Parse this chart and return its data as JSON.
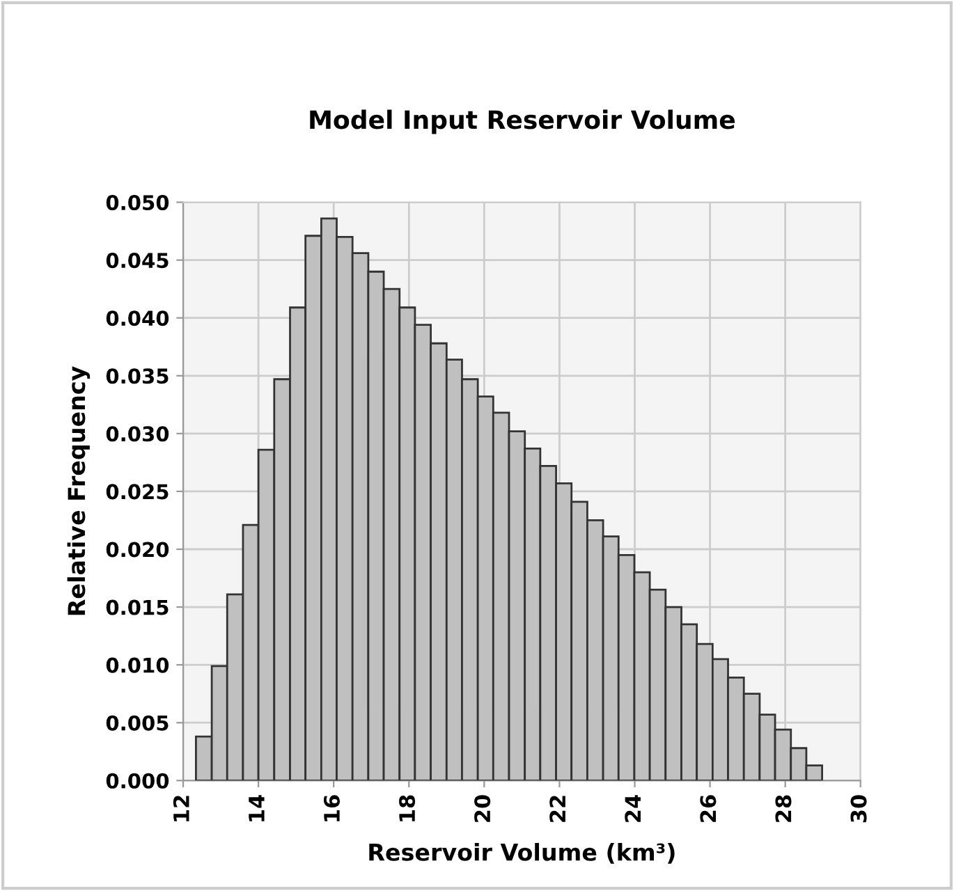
{
  "chart_data": {
    "type": "histogram",
    "title": "Model Input Reservoir Volume",
    "xlabel": "Reservoir Volume (km³)",
    "ylabel": "Relative Frequency",
    "bins": [
      12.34,
      12.76,
      13.17,
      13.59,
      14.0,
      14.42,
      14.84,
      15.25,
      15.67,
      16.08,
      16.5,
      16.92,
      17.33,
      17.75,
      18.16,
      18.58,
      19.0,
      19.41,
      19.83,
      20.24,
      20.66,
      21.08,
      21.49,
      21.91,
      22.32,
      22.74,
      23.16,
      23.57,
      23.99,
      24.4,
      24.82,
      25.24,
      25.65,
      26.07,
      26.48,
      26.9,
      27.32,
      27.73,
      28.15,
      28.56,
      28.98
    ],
    "values": [
      0.0038,
      0.0099,
      0.0161,
      0.0221,
      0.0286,
      0.0347,
      0.0409,
      0.0471,
      0.0486,
      0.047,
      0.0456,
      0.044,
      0.0425,
      0.0409,
      0.0394,
      0.0378,
      0.0364,
      0.0347,
      0.0332,
      0.0318,
      0.0302,
      0.0287,
      0.0272,
      0.0257,
      0.0241,
      0.0225,
      0.0211,
      0.0195,
      0.018,
      0.0165,
      0.015,
      0.0135,
      0.0118,
      0.0105,
      0.0089,
      0.0075,
      0.0057,
      0.0044,
      0.0028,
      0.0013
    ],
    "color": "#c0c0c0",
    "xlim": [
      12,
      30
    ],
    "xticks": [
      12,
      14,
      16,
      18,
      20,
      22,
      24,
      26,
      28,
      30
    ],
    "ylim": [
      0,
      0.05
    ],
    "yticks": [
      {
        "value": 0,
        "label": "0.000"
      },
      {
        "value": 0.005,
        "label": "0.005"
      },
      {
        "value": 0.01,
        "label": "0.010"
      },
      {
        "value": 0.015,
        "label": "0.015"
      },
      {
        "value": 0.02,
        "label": "0.020"
      },
      {
        "value": 0.025,
        "label": "0.025"
      },
      {
        "value": 0.03,
        "label": "0.030"
      },
      {
        "value": 0.035,
        "label": "0.035"
      },
      {
        "value": 0.04,
        "label": "0.040"
      },
      {
        "value": 0.045,
        "label": "0.045"
      },
      {
        "value": 0.05,
        "label": "0.050"
      }
    ],
    "grid": true
  }
}
